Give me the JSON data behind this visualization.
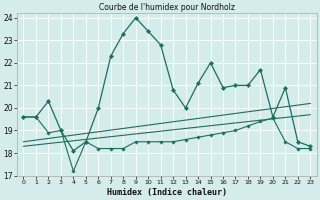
{
  "title": "Courbe de l'humidex pour Nordholz",
  "xlabel": "Humidex (Indice chaleur)",
  "xlim": [
    -0.5,
    23.5
  ],
  "ylim": [
    17,
    24.2
  ],
  "yticks": [
    17,
    18,
    19,
    20,
    21,
    22,
    23,
    24
  ],
  "xticks": [
    0,
    1,
    2,
    3,
    4,
    5,
    6,
    7,
    8,
    9,
    10,
    11,
    12,
    13,
    14,
    15,
    16,
    17,
    18,
    19,
    20,
    21,
    22,
    23
  ],
  "bg_color": "#d4ecea",
  "line_color": "#1e6e60",
  "main_line": {
    "x": [
      0,
      1,
      2,
      3,
      4,
      5,
      6,
      7,
      8,
      9,
      10,
      11,
      12,
      13,
      14,
      15,
      16,
      17,
      18,
      19,
      20,
      21,
      22,
      23
    ],
    "y": [
      19.6,
      19.6,
      20.3,
      19.0,
      18.1,
      18.5,
      20.0,
      22.3,
      23.3,
      24.0,
      23.4,
      22.8,
      20.8,
      20.0,
      21.1,
      22.0,
      20.9,
      21.0,
      21.0,
      21.7,
      19.6,
      20.9,
      18.5,
      18.3
    ]
  },
  "line_upper": {
    "x": [
      0,
      23
    ],
    "y": [
      18.5,
      20.2
    ]
  },
  "line_middle": {
    "x": [
      0,
      23
    ],
    "y": [
      18.3,
      19.7
    ]
  },
  "line_lower": {
    "x": [
      0,
      1,
      2,
      3,
      4,
      5,
      6,
      7,
      8,
      9,
      10,
      11,
      12,
      13,
      14,
      15,
      16,
      17,
      18,
      19,
      20,
      21,
      22,
      23
    ],
    "y": [
      19.6,
      19.6,
      18.9,
      19.0,
      17.2,
      18.5,
      18.2,
      18.2,
      18.2,
      18.5,
      18.5,
      18.5,
      18.5,
      18.6,
      18.7,
      18.8,
      18.9,
      19.0,
      19.2,
      19.4,
      19.55,
      18.5,
      18.2,
      18.2
    ]
  }
}
